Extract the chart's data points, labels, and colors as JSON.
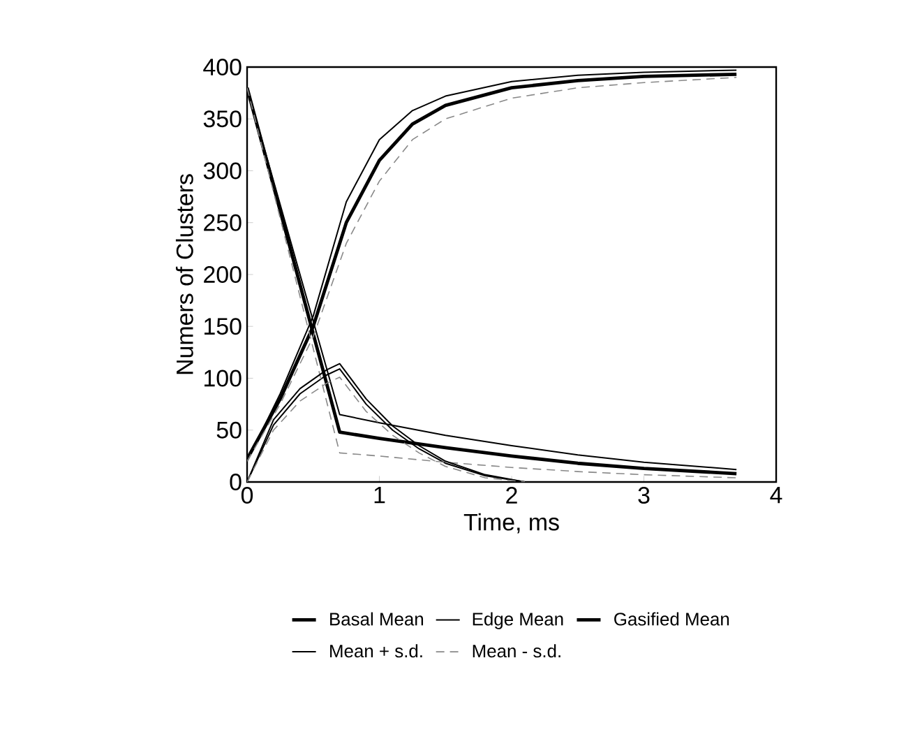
{
  "chart_data": {
    "type": "line",
    "xlabel": "Time, ms",
    "ylabel": "Numers of Clusters",
    "xlim": [
      0,
      4
    ],
    "xticks": [
      0,
      1,
      2,
      3,
      4
    ],
    "ylim": [
      0,
      400
    ],
    "yticks": [
      0,
      50,
      100,
      150,
      200,
      250,
      300,
      350,
      400
    ],
    "grid": false,
    "legend": "bottom",
    "marker": "none",
    "series": [
      {
        "name": "Basal Mean",
        "color": "#000000",
        "line_style": "solid",
        "x": [
          0,
          0.7,
          1,
          1.5,
          2,
          2.5,
          3,
          3.7
        ],
        "values": [
          380,
          48,
          42,
          33,
          25,
          18,
          13,
          8
        ]
      },
      {
        "name": "Edge Mean",
        "color": "#000000",
        "line_style": "solid",
        "x": [
          0,
          0.2,
          0.4,
          0.6,
          0.7,
          0.9,
          1.1,
          1.3,
          1.5,
          1.8,
          2.1
        ],
        "values": [
          0,
          55,
          85,
          103,
          109,
          75,
          50,
          32,
          18,
          6,
          0
        ]
      },
      {
        "name": "Gasified Mean",
        "color": "#000000",
        "line_style": "solid",
        "x": [
          0,
          0.25,
          0.5,
          0.75,
          1,
          1.25,
          1.5,
          2,
          2.5,
          3,
          3.7
        ],
        "values": [
          22,
          80,
          150,
          250,
          310,
          345,
          363,
          380,
          387,
          391,
          393
        ]
      },
      {
        "name": "Mean + s.d.",
        "color": "#000000",
        "line_style": "solid",
        "x": [
          0,
          0.7,
          1,
          1.5,
          2,
          2.5,
          3,
          3.7
        ],
        "values": [
          380,
          65,
          57,
          45,
          35,
          26,
          19,
          12
        ]
      },
      {
        "name": "Mean - s.d.",
        "color": "#888888",
        "line_style": "dashed",
        "x": [
          0,
          0.7,
          1,
          1.5,
          2,
          2.5,
          3,
          3.7
        ],
        "values": [
          380,
          28,
          25,
          19,
          14,
          10,
          7,
          4
        ]
      },
      {
        "color": "#000000",
        "line_style": "solid",
        "x": [
          0,
          0.2,
          0.4,
          0.6,
          0.7,
          0.9,
          1.1,
          1.3,
          1.5,
          1.8,
          2.1
        ],
        "values": [
          0,
          60,
          90,
          108,
          114,
          80,
          54,
          35,
          20,
          7,
          0
        ]
      },
      {
        "color": "#888888",
        "line_style": "dashed",
        "x": [
          0,
          0.2,
          0.4,
          0.6,
          0.7,
          0.9,
          1.1,
          1.3,
          1.5,
          1.8,
          2.1
        ],
        "values": [
          0,
          50,
          78,
          95,
          101,
          68,
          45,
          28,
          15,
          4,
          0
        ]
      },
      {
        "color": "#000000",
        "line_style": "solid",
        "x": [
          0,
          0.25,
          0.5,
          0.75,
          1,
          1.25,
          1.5,
          2,
          2.5,
          3,
          3.7
        ],
        "values": [
          20,
          85,
          160,
          270,
          330,
          358,
          372,
          386,
          392,
          395,
          397
        ]
      },
      {
        "color": "#888888",
        "line_style": "dashed",
        "x": [
          0,
          0.25,
          0.5,
          0.75,
          1,
          1.25,
          1.5,
          2,
          2.5,
          3,
          3.7
        ],
        "values": [
          20,
          75,
          140,
          230,
          290,
          330,
          350,
          370,
          380,
          385,
          390
        ]
      }
    ]
  }
}
